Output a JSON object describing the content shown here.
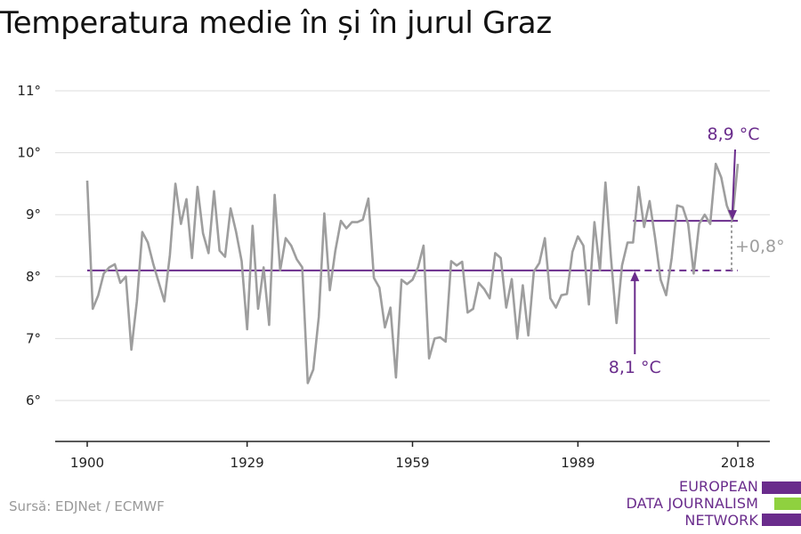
{
  "title": "Temperatura medie în și în jurul Graz",
  "source": "Sursă: EDJNet / ECMWF",
  "logo": {
    "lines": [
      "EUROPEAN",
      "DATA JOURNALISM",
      "NETWORK"
    ],
    "colors": [
      "#6a2c8c",
      "#8fd13f",
      "#6a2c8c"
    ]
  },
  "annotations": {
    "baseline_label": "8,1 °C",
    "recent_label": "8,9 °C",
    "diff_label": "+0,8°"
  },
  "colors": {
    "series": "#9e9e9e",
    "accent": "#6a2c8c",
    "diff": "#9e9e9e",
    "grid": "#dddddd",
    "text": "#222222"
  },
  "chart_data": {
    "type": "line",
    "title": "Temperatura medie în și în jurul Graz",
    "xlabel": "",
    "ylabel": "",
    "xlim": [
      1900,
      2018
    ],
    "ylim": [
      5.4,
      11.2
    ],
    "x_ticks": [
      1900,
      1929,
      1959,
      1989,
      2018
    ],
    "y_ticks": [
      {
        "value": 6,
        "label": "6°"
      },
      {
        "value": 7,
        "label": "7°"
      },
      {
        "value": 8,
        "label": "8°"
      },
      {
        "value": 9,
        "label": "9°"
      },
      {
        "value": 10,
        "label": "10°"
      },
      {
        "value": 11,
        "label": "11°"
      }
    ],
    "grid": true,
    "x_start": 1900,
    "values": [
      9.55,
      7.48,
      7.7,
      8.05,
      8.15,
      8.2,
      7.9,
      8.0,
      6.82,
      7.6,
      8.72,
      8.55,
      8.2,
      7.9,
      7.6,
      8.35,
      9.5,
      8.85,
      9.25,
      8.3,
      9.45,
      8.7,
      8.38,
      9.38,
      8.42,
      8.32,
      9.1,
      8.72,
      8.25,
      7.15,
      8.82,
      7.48,
      8.15,
      7.22,
      9.32,
      8.1,
      8.62,
      8.5,
      8.28,
      8.15,
      6.28,
      6.5,
      7.35,
      9.02,
      7.78,
      8.42,
      8.9,
      8.78,
      8.88,
      8.88,
      8.92,
      9.26,
      7.98,
      7.82,
      7.18,
      7.5,
      6.37,
      7.95,
      7.88,
      7.95,
      8.15,
      8.5,
      6.68,
      7.0,
      7.02,
      6.95,
      8.25,
      8.18,
      8.24,
      7.42,
      7.48,
      7.9,
      7.8,
      7.65,
      8.38,
      8.3,
      7.5,
      7.96,
      7.0,
      7.86,
      7.05,
      8.08,
      8.22,
      8.62,
      7.65,
      7.5,
      7.7,
      7.72,
      8.4,
      8.65,
      8.5,
      7.55,
      8.88,
      8.1,
      9.52,
      8.3,
      7.25,
      8.18,
      8.55,
      8.55,
      9.45,
      8.8,
      9.22,
      8.62,
      7.95,
      7.7,
      8.3,
      9.15,
      9.12,
      8.85,
      8.05,
      8.85,
      9.0,
      8.85,
      9.82,
      9.6,
      9.15,
      8.92,
      9.82
    ],
    "reference_lines": [
      {
        "value": 8.1,
        "from": 1900,
        "to": 2018,
        "solid_to": 1999,
        "label": "8,1 °C"
      },
      {
        "value": 8.9,
        "from": 1999,
        "to": 2018,
        "label": "8,9 °C"
      }
    ],
    "difference": {
      "value": 0.8,
      "label": "+0,8°"
    }
  }
}
